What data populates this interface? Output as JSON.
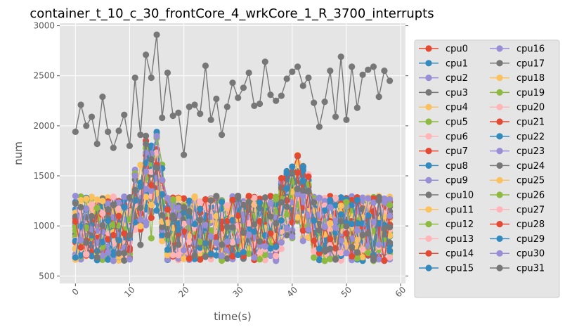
{
  "chart_data": {
    "type": "line",
    "title": "container_t_10_c_30_frontCore_4_wrkCore_1_R_3700_interrupts",
    "xlabel": "time(s)",
    "ylabel": "num",
    "xlim": [
      -2.9,
      60.9
    ],
    "ylim": [
      425,
      3025
    ],
    "x_ticks": [
      0,
      10,
      20,
      30,
      40,
      50,
      60
    ],
    "y_ticks": [
      500,
      1000,
      1500,
      2000,
      2500,
      3000
    ],
    "grid": true,
    "legend_position": "right-outside",
    "legend_columns": 2,
    "colors": [
      "#E24A33",
      "#348ABD",
      "#988ED5",
      "#777777",
      "#FBC15E",
      "#8EBA42",
      "#FFB5B8"
    ],
    "series": [
      {
        "name": "cpu0"
      },
      {
        "name": "cpu1"
      },
      {
        "name": "cpu2"
      },
      {
        "name": "cpu3"
      },
      {
        "name": "cpu4"
      },
      {
        "name": "cpu5"
      },
      {
        "name": "cpu6"
      },
      {
        "name": "cpu7"
      },
      {
        "name": "cpu8"
      },
      {
        "name": "cpu9"
      },
      {
        "name": "cpu10"
      },
      {
        "name": "cpu11"
      },
      {
        "name": "cpu12"
      },
      {
        "name": "cpu13"
      },
      {
        "name": "cpu14"
      },
      {
        "name": "cpu15"
      },
      {
        "name": "cpu16"
      },
      {
        "name": "cpu17",
        "values": [
          1940,
          2210,
          2000,
          2090,
          1820,
          2290,
          1940,
          1780,
          1950,
          2110,
          1800,
          2480,
          1910,
          2710,
          2480,
          2910,
          2080,
          2530,
          2100,
          2130,
          1710,
          2190,
          2210,
          2120,
          2600,
          2060,
          2270,
          1910,
          2190,
          2430,
          2280,
          2380,
          2530,
          2200,
          2220,
          2640,
          2310,
          2250,
          2300,
          2470,
          2540,
          2590,
          2400,
          2480,
          2230,
          1990,
          2240,
          2550,
          2090,
          2690,
          2060,
          2590,
          2180,
          2510,
          2560,
          2590,
          2290,
          2550,
          2450
        ]
      },
      {
        "name": "cpu18"
      },
      {
        "name": "cpu19"
      },
      {
        "name": "cpu20"
      },
      {
        "name": "cpu21"
      },
      {
        "name": "cpu22"
      },
      {
        "name": "cpu23"
      },
      {
        "name": "cpu24"
      },
      {
        "name": "cpu25"
      },
      {
        "name": "cpu26"
      },
      {
        "name": "cpu27"
      },
      {
        "name": "cpu28"
      },
      {
        "name": "cpu29"
      },
      {
        "name": "cpu30"
      },
      {
        "name": "cpu31"
      }
    ]
  }
}
